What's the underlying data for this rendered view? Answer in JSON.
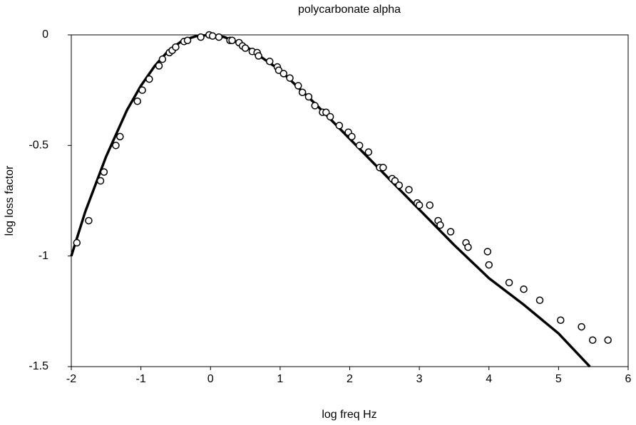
{
  "chart_data": {
    "type": "scatter",
    "title": "polycarbonate alpha",
    "x_label": "log freq   Hz",
    "y_label": "log  loss factor",
    "xlim": [
      -2,
      6
    ],
    "ylim": [
      -1.5,
      0
    ],
    "xticks": [
      -2,
      -1,
      0,
      1,
      2,
      3,
      4,
      5,
      6
    ],
    "yticks": [
      0,
      -0.5,
      -1,
      -1.5
    ],
    "grid": false,
    "series": [
      {
        "type": "scatter",
        "color": "#000000",
        "x": [
          -1.92,
          -1.75,
          -1.58,
          -1.53,
          -1.36,
          -1.3,
          -1.05,
          -0.98,
          -0.88,
          -0.74,
          -0.69,
          -0.59,
          -0.55,
          -0.5,
          -0.38,
          -0.33,
          -0.14,
          -0.02,
          0.03,
          0.12,
          0.28,
          0.31,
          0.41,
          0.46,
          0.5,
          0.6,
          0.67,
          0.69,
          0.85,
          0.96,
          0.98,
          1.05,
          1.14,
          1.26,
          1.32,
          1.41,
          1.5,
          1.61,
          1.66,
          1.72,
          1.85,
          1.98,
          2.03,
          2.14,
          2.27,
          2.43,
          2.48,
          2.61,
          2.65,
          2.71,
          2.85,
          2.97,
          3.0,
          3.15,
          3.27,
          3.3,
          3.45,
          3.67,
          3.7,
          3.98,
          4.0,
          4.29,
          4.5,
          4.73,
          5.03,
          5.33,
          5.49,
          5.71
        ],
        "values": [
          -0.94,
          -0.84,
          -0.66,
          -0.62,
          -0.5,
          -0.46,
          -0.3,
          -0.25,
          -0.2,
          -0.14,
          -0.11,
          -0.08,
          -0.07,
          -0.055,
          -0.03,
          -0.025,
          -0.01,
          0,
          -0.005,
          -0.01,
          -0.025,
          -0.025,
          -0.035,
          -0.05,
          -0.06,
          -0.075,
          -0.08,
          -0.095,
          -0.12,
          -0.145,
          -0.16,
          -0.175,
          -0.195,
          -0.23,
          -0.26,
          -0.28,
          -0.32,
          -0.35,
          -0.35,
          -0.37,
          -0.41,
          -0.44,
          -0.46,
          -0.5,
          -0.53,
          -0.6,
          -0.6,
          -0.65,
          -0.66,
          -0.68,
          -0.7,
          -0.76,
          -0.77,
          -0.77,
          -0.84,
          -0.86,
          -0.89,
          -0.94,
          -0.96,
          -0.98,
          -1.04,
          -1.12,
          -1.15,
          -1.2,
          -1.29,
          -1.32,
          -1.38,
          -1.38
        ]
      },
      {
        "type": "line",
        "color": "#000000",
        "x": [
          -2,
          -1.8,
          -1.5,
          -1.2,
          -1.0,
          -0.8,
          -0.6,
          -0.4,
          -0.2,
          0,
          0.2,
          0.5,
          1,
          1.5,
          2,
          2.5,
          3,
          3.5,
          4,
          4.5,
          5,
          5.45
        ],
        "values": [
          -1.0,
          -0.8,
          -0.55,
          -0.34,
          -0.23,
          -0.14,
          -0.07,
          -0.025,
          -0.005,
          0,
          -0.01,
          -0.05,
          -0.16,
          -0.31,
          -0.47,
          -0.63,
          -0.79,
          -0.95,
          -1.1,
          -1.22,
          -1.35,
          -1.5
        ]
      }
    ]
  }
}
